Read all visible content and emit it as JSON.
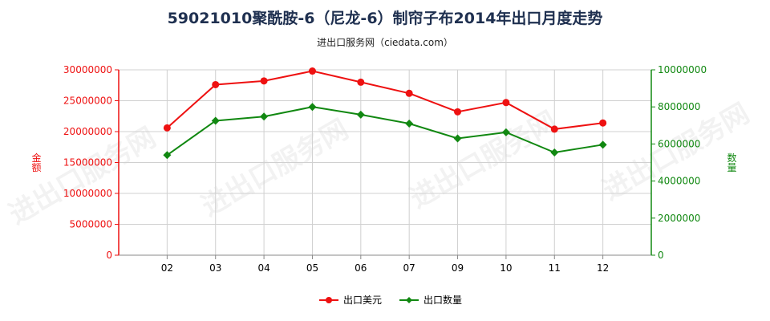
{
  "title": "59021010聚酰胺-6（尼龙-6）制帘子布2014年出口月度走势",
  "subtitle": "进出口服务网（ciedata.com）",
  "watermark": "进出口服务网",
  "colors": {
    "usd": "#ee1111",
    "qty": "#118811",
    "title": "#1f3050",
    "grid": "#d0d0d0"
  },
  "chart_data": {
    "type": "line",
    "categories": [
      "02",
      "03",
      "04",
      "05",
      "06",
      "07",
      "09",
      "10",
      "11",
      "12"
    ],
    "series": [
      {
        "name": "出口美元",
        "axis": "left",
        "marker": "circle",
        "values": [
          20600000,
          27600000,
          28200000,
          29800000,
          28000000,
          26200000,
          23200000,
          24700000,
          20400000,
          21400000
        ]
      },
      {
        "name": "出口数量",
        "axis": "right",
        "marker": "diamond",
        "values": [
          5400000,
          7250000,
          7480000,
          8000000,
          7580000,
          7100000,
          6300000,
          6630000,
          5540000,
          5960000
        ]
      }
    ],
    "ylabel_left": "金额",
    "ylabel_right": "数量",
    "ylim_left": [
      0,
      30000000
    ],
    "ylim_right": [
      0,
      10000000
    ],
    "yticks_left": [
      "0",
      "5000000",
      "10000000",
      "15000000",
      "20000000",
      "25000000",
      "30000000"
    ],
    "yticks_right": [
      "0",
      "2000000",
      "4000000",
      "6000000",
      "8000000",
      "10000000"
    ],
    "grid": true,
    "legend": "bottom-center"
  }
}
